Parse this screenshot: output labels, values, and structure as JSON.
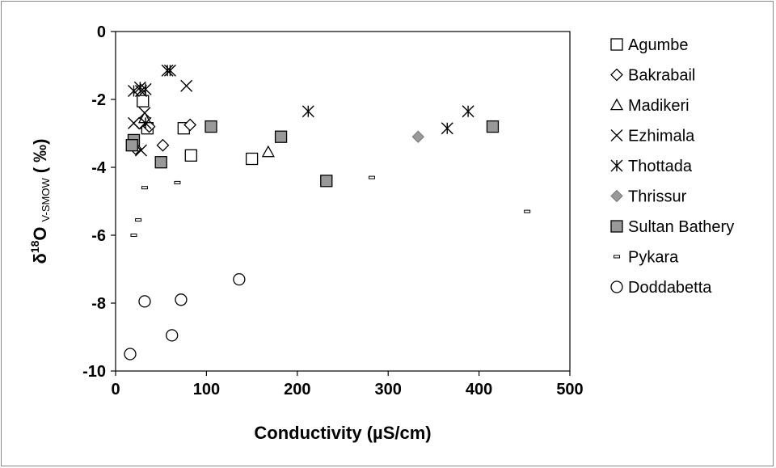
{
  "chart_data": {
    "type": "scatter",
    "xlabel": "Conductivity (µS/cm)",
    "ylabel": "δ18O V-SMOW (‰)",
    "ylabel_parts": {
      "delta": "δ",
      "sup": "18",
      "main": "O",
      "sub": "V-SMOW",
      "unit": "( ‰)"
    },
    "xlim": [
      0,
      500
    ],
    "ylim": [
      -10,
      0
    ],
    "xticks": [
      0,
      100,
      200,
      300,
      400,
      500
    ],
    "yticks": [
      0,
      -2,
      -4,
      -6,
      -8,
      -10
    ],
    "grid": false,
    "legend_position": "right",
    "series": [
      {
        "name": "Agumbe",
        "marker": "square-open",
        "color": "#000000",
        "points": [
          [
            30,
            -2.05
          ],
          [
            35,
            -2.85
          ],
          [
            75,
            -2.85
          ],
          [
            83,
            -3.65
          ],
          [
            150,
            -3.75
          ]
        ]
      },
      {
        "name": "Bakrabail",
        "marker": "diamond-open",
        "color": "#000000",
        "points": [
          [
            22,
            -3.45
          ],
          [
            26,
            -2.7
          ],
          [
            52,
            -3.35
          ],
          [
            82,
            -2.75
          ],
          [
            37,
            -2.8
          ]
        ]
      },
      {
        "name": "Madikeri",
        "marker": "triangle-open",
        "color": "#000000",
        "points": [
          [
            168,
            -3.55
          ],
          [
            32,
            -2.55
          ]
        ]
      },
      {
        "name": "Ezhimala",
        "marker": "x",
        "color": "#000000",
        "points": [
          [
            20,
            -2.7
          ],
          [
            28,
            -3.5
          ],
          [
            32,
            -2.4
          ],
          [
            28,
            -1.75
          ],
          [
            78,
            -1.6
          ]
        ]
      },
      {
        "name": "Thottada",
        "marker": "asterisk",
        "color": "#000000",
        "points": [
          [
            20,
            -1.75
          ],
          [
            27,
            -1.65
          ],
          [
            33,
            -1.7
          ],
          [
            33,
            -2.7
          ],
          [
            57,
            -1.15
          ],
          [
            60,
            -1.15
          ],
          [
            212,
            -2.35
          ],
          [
            365,
            -2.85
          ],
          [
            388,
            -2.35
          ]
        ]
      },
      {
        "name": "Thrissur",
        "marker": "diamond-filled",
        "color": "#999999",
        "points": [
          [
            333,
            -3.1
          ]
        ]
      },
      {
        "name": "Sultan Bathery",
        "marker": "square-filled",
        "color": "#999999",
        "points": [
          [
            20,
            -3.2
          ],
          [
            18,
            -3.35
          ],
          [
            50,
            -3.85
          ],
          [
            105,
            -2.8
          ],
          [
            182,
            -3.1
          ],
          [
            232,
            -4.4
          ],
          [
            415,
            -2.8
          ]
        ]
      },
      {
        "name": "Pykara",
        "marker": "dash",
        "color": "#000000",
        "points": [
          [
            20,
            -6.0
          ],
          [
            25,
            -5.55
          ],
          [
            32,
            -4.6
          ],
          [
            68,
            -4.45
          ],
          [
            282,
            -4.3
          ],
          [
            453,
            -5.3
          ]
        ]
      },
      {
        "name": "Doddabetta",
        "marker": "circle-open",
        "color": "#000000",
        "points": [
          [
            16,
            -9.5
          ],
          [
            32,
            -7.95
          ],
          [
            62,
            -8.95
          ],
          [
            72,
            -7.9
          ],
          [
            136,
            -7.3
          ]
        ]
      }
    ]
  }
}
